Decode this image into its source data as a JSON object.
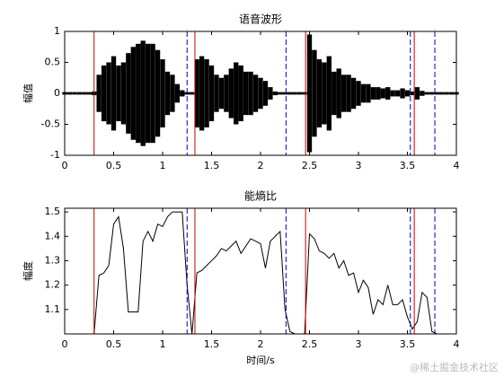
{
  "chart_data": [
    {
      "type": "waveform",
      "title": "语音波形",
      "ylabel": "幅值",
      "color": "#000000",
      "x": [
        0,
        0.05,
        0.1,
        0.15,
        0.2,
        0.25,
        0.3,
        0.35,
        0.4,
        0.45,
        0.5,
        0.55,
        0.6,
        0.65,
        0.7,
        0.75,
        0.8,
        0.85,
        0.9,
        0.95,
        1,
        1.05,
        1.1,
        1.15,
        1.2,
        1.25,
        1.3,
        1.35,
        1.4,
        1.45,
        1.5,
        1.55,
        1.6,
        1.65,
        1.7,
        1.75,
        1.8,
        1.85,
        1.9,
        1.95,
        2,
        2.05,
        2.1,
        2.15,
        2.2,
        2.25,
        2.3,
        2.35,
        2.4,
        2.45,
        2.5,
        2.55,
        2.6,
        2.65,
        2.7,
        2.75,
        2.8,
        2.85,
        2.9,
        2.95,
        3,
        3.05,
        3.1,
        3.15,
        3.2,
        3.25,
        3.3,
        3.35,
        3.4,
        3.45,
        3.5,
        3.55,
        3.6,
        3.65,
        3.7,
        3.75,
        3.8,
        3.85,
        3.9,
        3.95,
        4
      ],
      "values": [
        0.02,
        0.02,
        0.02,
        0.02,
        0.02,
        0.02,
        0.03,
        0.3,
        0.45,
        0.5,
        0.6,
        0.45,
        0.5,
        0.65,
        0.75,
        0.8,
        0.85,
        0.8,
        0.8,
        0.7,
        0.55,
        0.35,
        0.3,
        0.15,
        0.05,
        0.02,
        0.02,
        0.55,
        0.6,
        0.55,
        0.45,
        0.3,
        0.25,
        0.3,
        0.4,
        0.5,
        0.45,
        0.35,
        0.35,
        0.3,
        0.25,
        0.2,
        0.1,
        0.03,
        0.02,
        0.02,
        0.02,
        0.02,
        0.02,
        0.02,
        0.95,
        0.7,
        0.55,
        0.5,
        0.6,
        0.35,
        0.4,
        0.3,
        0.3,
        0.25,
        0.2,
        0.15,
        0.15,
        0.1,
        0.1,
        0.08,
        0.1,
        0.05,
        0.05,
        0.08,
        0.05,
        0.03,
        0.1,
        0.04,
        0.02,
        0.02,
        0.02,
        0.02,
        0.02,
        0.02,
        0.02
      ],
      "xlim": [
        0,
        4
      ],
      "xticks": [
        0,
        0.5,
        1,
        1.5,
        2,
        2.5,
        3,
        3.5,
        4
      ],
      "ylim": [
        -1,
        1
      ],
      "yticks": [
        -1,
        -0.5,
        0,
        0.5,
        1
      ],
      "start_lines": {
        "color": "#cc0000",
        "x": [
          0.3,
          1.33,
          2.46,
          3.57
        ]
      },
      "end_lines": {
        "color": "#0000cc",
        "x": [
          1.25,
          2.26,
          3.53,
          3.78
        ]
      }
    },
    {
      "type": "line",
      "title": "能熵比",
      "ylabel": "幅度",
      "xlabel": "时间/s",
      "color": "#000000",
      "x": [
        0,
        0.05,
        0.1,
        0.15,
        0.2,
        0.25,
        0.3,
        0.35,
        0.4,
        0.45,
        0.5,
        0.55,
        0.6,
        0.65,
        0.7,
        0.75,
        0.8,
        0.85,
        0.9,
        0.95,
        1,
        1.05,
        1.1,
        1.15,
        1.2,
        1.25,
        1.3,
        1.35,
        1.4,
        1.45,
        1.5,
        1.55,
        1.6,
        1.65,
        1.7,
        1.75,
        1.8,
        1.85,
        1.9,
        1.95,
        2,
        2.05,
        2.1,
        2.15,
        2.2,
        2.25,
        2.3,
        2.35,
        2.4,
        2.45,
        2.5,
        2.55,
        2.6,
        2.65,
        2.7,
        2.75,
        2.8,
        2.85,
        2.9,
        2.95,
        3,
        3.05,
        3.1,
        3.15,
        3.2,
        3.25,
        3.3,
        3.35,
        3.4,
        3.45,
        3.5,
        3.55,
        3.6,
        3.65,
        3.7,
        3.75,
        3.8,
        3.85,
        3.9,
        3.95,
        4
      ],
      "values": [
        1,
        1,
        1,
        1,
        1,
        1,
        1,
        1.24,
        1.25,
        1.28,
        1.45,
        1.48,
        1.35,
        1.09,
        1.09,
        1.09,
        1.38,
        1.42,
        1.38,
        1.45,
        1.44,
        1.48,
        1.5,
        1.5,
        1.5,
        1.2,
        1,
        1.25,
        1.26,
        1.28,
        1.3,
        1.32,
        1.35,
        1.34,
        1.36,
        1.38,
        1.33,
        1.36,
        1.39,
        1.38,
        1.37,
        1.27,
        1.38,
        1.4,
        1.42,
        1.1,
        1.01,
        1,
        1,
        1,
        1.41,
        1.39,
        1.34,
        1.33,
        1.31,
        1.33,
        1.27,
        1.3,
        1.24,
        1.25,
        1.17,
        1.22,
        1.19,
        1.08,
        1.14,
        1.12,
        1.2,
        1.12,
        1.12,
        1.14,
        1.07,
        1.02,
        1.05,
        1.17,
        1.15,
        1.01,
        1,
        1,
        1,
        1,
        1
      ],
      "xlim": [
        0,
        4
      ],
      "xticks": [
        0,
        0.5,
        1,
        1.5,
        2,
        2.5,
        3,
        3.5,
        4
      ],
      "ylim": [
        1,
        1.515
      ],
      "yticks": [
        1.1,
        1.2,
        1.3,
        1.4,
        1.5
      ],
      "start_lines": {
        "color": "#cc0000",
        "x": [
          0.3,
          1.33,
          2.46,
          3.57
        ]
      },
      "end_lines": {
        "color": "#0000cc",
        "x": [
          1.25,
          2.26,
          3.53,
          3.78
        ]
      }
    }
  ],
  "watermark": "@稀土掘金技术社区"
}
